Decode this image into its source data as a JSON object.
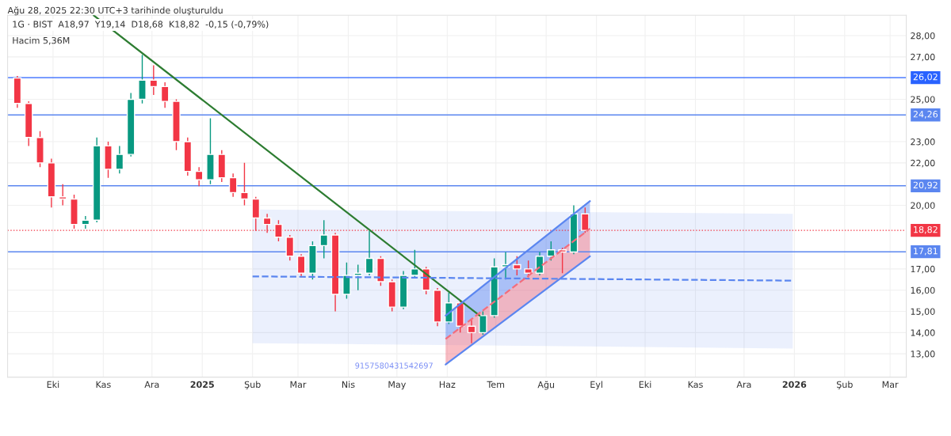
{
  "chart_data": {
    "type": "candlestick",
    "title": "1G · BIST  A18,97  Y19,14  D18,68  K18,82  -0,15 (-0,79%)",
    "annotations": [
      "Ağu 28, 2025 22:30 UTC+3 tarihinde oluşturuldu",
      "Hacim 5,36M",
      "9157580431542697"
    ],
    "x": [
      "2024-09-09",
      "2024-09-16",
      "2024-09-23",
      "2024-09-30",
      "2024-10-07",
      "2024-10-14",
      "2024-10-21",
      "2024-10-28",
      "2024-11-04",
      "2024-11-11",
      "2024-11-18",
      "2024-11-25",
      "2024-12-02",
      "2024-12-09",
      "2024-12-16",
      "2024-12-23",
      "2024-12-30",
      "2025-01-06",
      "2025-01-13",
      "2025-01-20",
      "2025-01-27",
      "2025-02-03",
      "2025-02-10",
      "2025-02-17",
      "2025-02-24",
      "2025-03-03",
      "2025-03-10",
      "2025-03-17",
      "2025-03-24",
      "2025-03-31",
      "2025-04-07",
      "2025-04-14",
      "2025-04-21",
      "2025-04-28",
      "2025-05-05",
      "2025-05-12",
      "2025-05-19",
      "2025-05-26",
      "2025-06-02",
      "2025-06-09",
      "2025-06-16",
      "2025-06-23",
      "2025-06-30",
      "2025-07-07",
      "2025-07-14",
      "2025-07-21",
      "2025-07-28",
      "2025-08-04",
      "2025-08-11",
      "2025-08-18",
      "2025-08-25"
    ],
    "ohlc": [
      [
        26.0,
        26.1,
        24.6,
        24.8
      ],
      [
        24.8,
        24.9,
        22.8,
        23.2
      ],
      [
        23.2,
        23.5,
        21.8,
        22.0
      ],
      [
        22.0,
        22.2,
        19.9,
        20.4
      ],
      [
        20.4,
        21.0,
        20.0,
        20.3
      ],
      [
        20.3,
        20.5,
        18.9,
        19.1
      ],
      [
        19.1,
        19.5,
        18.9,
        19.3
      ],
      [
        19.3,
        23.2,
        19.2,
        22.8
      ],
      [
        22.8,
        23.0,
        21.3,
        21.7
      ],
      [
        21.7,
        22.8,
        21.5,
        22.4
      ],
      [
        22.4,
        25.3,
        22.3,
        25.0
      ],
      [
        25.0,
        27.1,
        24.8,
        25.9
      ],
      [
        25.9,
        26.6,
        25.2,
        25.6
      ],
      [
        25.6,
        25.8,
        24.6,
        24.9
      ],
      [
        24.9,
        25.0,
        22.6,
        23.0
      ],
      [
        23.0,
        23.2,
        21.4,
        21.6
      ],
      [
        21.6,
        21.8,
        20.9,
        21.2
      ],
      [
        21.2,
        24.1,
        21.0,
        22.4
      ],
      [
        22.4,
        22.6,
        21.1,
        21.3
      ],
      [
        21.3,
        21.5,
        20.4,
        20.6
      ],
      [
        20.6,
        22.0,
        20.0,
        20.3
      ],
      [
        20.3,
        20.4,
        18.8,
        19.4
      ],
      [
        19.4,
        19.6,
        18.7,
        19.1
      ],
      [
        19.1,
        19.3,
        18.3,
        18.5
      ],
      [
        18.5,
        18.6,
        17.4,
        17.6
      ],
      [
        17.6,
        17.7,
        16.6,
        16.8
      ],
      [
        16.8,
        18.3,
        16.5,
        18.1
      ],
      [
        18.1,
        19.3,
        17.5,
        18.6
      ],
      [
        18.6,
        18.7,
        15.0,
        15.8
      ],
      [
        15.8,
        17.3,
        15.6,
        16.7
      ],
      [
        16.7,
        17.2,
        16.0,
        16.8
      ],
      [
        16.8,
        18.8,
        16.7,
        17.5
      ],
      [
        17.5,
        17.6,
        16.2,
        16.4
      ],
      [
        16.4,
        16.5,
        15.0,
        15.2
      ],
      [
        15.2,
        16.9,
        15.1,
        16.7
      ],
      [
        16.7,
        17.9,
        16.6,
        17.0
      ],
      [
        17.0,
        17.1,
        15.8,
        16.0
      ],
      [
        16.0,
        16.1,
        14.3,
        14.5
      ],
      [
        14.5,
        15.9,
        14.4,
        15.4
      ],
      [
        15.4,
        15.5,
        14.0,
        14.3
      ],
      [
        14.3,
        14.6,
        13.5,
        14.0
      ],
      [
        14.0,
        15.0,
        13.9,
        14.8
      ],
      [
        14.8,
        17.5,
        14.7,
        17.1
      ],
      [
        17.1,
        17.8,
        16.5,
        17.2
      ],
      [
        17.2,
        17.6,
        16.7,
        17.0
      ],
      [
        17.0,
        17.4,
        16.6,
        16.8
      ],
      [
        16.8,
        17.8,
        16.7,
        17.6
      ],
      [
        17.6,
        18.3,
        17.4,
        17.9
      ],
      [
        17.9,
        18.0,
        16.8,
        17.8
      ],
      [
        17.8,
        20.0,
        17.7,
        19.6
      ],
      [
        19.6,
        19.9,
        18.7,
        18.82
      ]
    ],
    "colors": [
      "#f23645",
      "#f23645",
      "#f23645",
      "#f23645",
      "#f23645",
      "#f23645",
      "#089981",
      "#089981",
      "#f23645",
      "#089981",
      "#089981",
      "#089981",
      "#f23645",
      "#f23645",
      "#f23645",
      "#f23645",
      "#f23645",
      "#089981",
      "#f23645",
      "#f23645",
      "#f23645",
      "#f23645",
      "#f23645",
      "#f23645",
      "#f23645",
      "#f23645",
      "#089981",
      "#089981",
      "#f23645",
      "#089981",
      "#089981",
      "#089981",
      "#f23645",
      "#f23645",
      "#089981",
      "#089981",
      "#f23645",
      "#f23645",
      "#089981",
      "#f23645",
      "#f23645",
      "#089981",
      "#089981",
      "#089981",
      "#f23645",
      "#f23645",
      "#089981",
      "#089981",
      "#f23645",
      "#089981",
      "#f23645"
    ],
    "series": [
      {
        "type": "line",
        "color": "#2e7d32",
        "x": [
          "2024-10-26",
          "2025-06-21"
        ],
        "values": [
          28.96,
          14.8
        ]
      },
      {
        "type": "line",
        "color": "#5b86f0",
        "line_style": "dashed",
        "x": [
          "2025-02-01",
          "2025-12-31"
        ],
        "values": [
          16.65,
          16.45
        ],
        "lower": [
          13.5,
          13.25
        ],
        "upper": [
          19.8,
          19.6
        ]
      },
      {
        "type": "line",
        "color": "#5b86f0",
        "x": [
          "2025-05-31",
          "2025-08-28"
        ],
        "values": [
          14.8,
          20.2
        ],
        "lower": [
          13.7,
          18.9
        ],
        "upper": [
          14.8,
          20.2
        ]
      },
      {
        "type": "line",
        "color": "#f26d7d",
        "line_style": "dashed",
        "x": [
          "2025-05-31",
          "2025-08-28"
        ],
        "values": [
          13.7,
          18.9
        ],
        "lower": [
          12.5,
          17.6
        ],
        "upper": [
          13.7,
          18.9
        ]
      },
      {
        "type": "line",
        "color": "#5b86f0",
        "x": [
          "2025-05-31",
          "2025-08-28"
        ],
        "values": [
          12.5,
          17.6
        ]
      }
    ],
    "ref_lines": [
      {
        "axis": "y",
        "value": 26.02,
        "label": "26,02",
        "color": "#2962ff"
      },
      {
        "axis": "y",
        "value": 24.26,
        "label": "24,26",
        "color": "#5b86f0"
      },
      {
        "axis": "y",
        "value": 20.92,
        "label": "20,92",
        "color": "#5b86f0"
      },
      {
        "axis": "y",
        "value": 18.82,
        "label": "18,82",
        "color": "#f23645",
        "line_style": "dotted"
      },
      {
        "axis": "y",
        "value": 17.81,
        "label": "17,81",
        "color": "#5b86f0"
      }
    ],
    "xlim": [
      "2024-09-03",
      "2026-03-11"
    ],
    "xticks": [
      {
        "value": "2024-10-01",
        "label": "Eki"
      },
      {
        "value": "2024-11-01",
        "label": "Kas"
      },
      {
        "value": "2024-12-01",
        "label": "Ara"
      },
      {
        "value": "2025-01-01",
        "label": "2025"
      },
      {
        "value": "2025-02-01",
        "label": "Şub"
      },
      {
        "value": "2025-03-01",
        "label": "Mar"
      },
      {
        "value": "2025-04-01",
        "label": "Nis"
      },
      {
        "value": "2025-05-01",
        "label": "May"
      },
      {
        "value": "2025-06-01",
        "label": "Haz"
      },
      {
        "value": "2025-07-01",
        "label": "Tem"
      },
      {
        "value": "2025-08-01",
        "label": "Ağu"
      },
      {
        "value": "2025-09-01",
        "label": "Eyl"
      },
      {
        "value": "2025-10-01",
        "label": "Eki"
      },
      {
        "value": "2025-11-01",
        "label": "Kas"
      },
      {
        "value": "2025-12-01",
        "label": "Ara"
      },
      {
        "value": "2026-01-01",
        "label": "2026"
      },
      {
        "value": "2026-02-01",
        "label": "Şub"
      },
      {
        "value": "2026-03-01",
        "label": "Mar"
      }
    ],
    "ylim": [
      11.9,
      28.96
    ],
    "yticks": [
      {
        "value": 13,
        "label": "13,00"
      },
      {
        "value": 14,
        "label": "14,00"
      },
      {
        "value": 15,
        "label": "15,00"
      },
      {
        "value": 16,
        "label": "16,00"
      },
      {
        "value": 17,
        "label": "17,00"
      },
      {
        "value": 20,
        "label": "20,00"
      },
      {
        "value": 22,
        "label": "22,00"
      },
      {
        "value": 23,
        "label": "23,00"
      },
      {
        "value": 25,
        "label": "25,00"
      },
      {
        "value": 27,
        "label": "27,00"
      },
      {
        "value": 28,
        "label": "28,00"
      }
    ],
    "grid": true,
    "legend": false
  }
}
